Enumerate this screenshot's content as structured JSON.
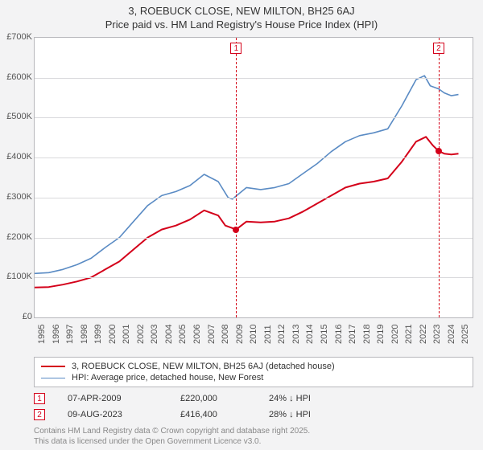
{
  "title_line1": "3, ROEBUCK CLOSE, NEW MILTON, BH25 6AJ",
  "title_line2": "Price paid vs. HM Land Registry's House Price Index (HPI)",
  "chart": {
    "background_color": "#ffffff",
    "page_background": "#f3f3f4",
    "grid_color": "#d9d9dc",
    "border_color": "#b8b8bc",
    "x_min": 1995,
    "x_max": 2026,
    "y_min": 0,
    "y_max": 700000,
    "y_ticks": [
      0,
      100000,
      200000,
      300000,
      400000,
      500000,
      600000,
      700000
    ],
    "y_tick_labels": [
      "£0",
      "£100K",
      "£200K",
      "£300K",
      "£400K",
      "£500K",
      "£600K",
      "£700K"
    ],
    "x_ticks": [
      1995,
      1996,
      1997,
      1998,
      1999,
      2000,
      2001,
      2002,
      2003,
      2004,
      2005,
      2006,
      2007,
      2008,
      2009,
      2010,
      2011,
      2012,
      2013,
      2014,
      2015,
      2016,
      2017,
      2018,
      2019,
      2020,
      2021,
      2022,
      2023,
      2024,
      2025
    ],
    "label_fontsize": 11,
    "title_fontsize": 13
  },
  "series": [
    {
      "name": "3, ROEBUCK CLOSE, NEW MILTON, BH25 6AJ (detached house)",
      "color": "#d4001a",
      "line_width": 2,
      "data": [
        [
          1995,
          75000
        ],
        [
          1996,
          76000
        ],
        [
          1997,
          82000
        ],
        [
          1998,
          90000
        ],
        [
          1999,
          100000
        ],
        [
          2000,
          120000
        ],
        [
          2001,
          140000
        ],
        [
          2002,
          170000
        ],
        [
          2003,
          200000
        ],
        [
          2004,
          220000
        ],
        [
          2005,
          230000
        ],
        [
          2006,
          245000
        ],
        [
          2007,
          268000
        ],
        [
          2008,
          255000
        ],
        [
          2008.5,
          230000
        ],
        [
          2009.27,
          220000
        ],
        [
          2010,
          240000
        ],
        [
          2011,
          238000
        ],
        [
          2012,
          240000
        ],
        [
          2013,
          248000
        ],
        [
          2014,
          265000
        ],
        [
          2015,
          285000
        ],
        [
          2016,
          305000
        ],
        [
          2017,
          325000
        ],
        [
          2018,
          335000
        ],
        [
          2019,
          340000
        ],
        [
          2020,
          348000
        ],
        [
          2021,
          390000
        ],
        [
          2022,
          440000
        ],
        [
          2022.7,
          452000
        ],
        [
          2023.2,
          430000
        ],
        [
          2023.6,
          416400
        ],
        [
          2024,
          410000
        ],
        [
          2024.5,
          408000
        ],
        [
          2025,
          410000
        ]
      ]
    },
    {
      "name": "HPI: Average price, detached house, New Forest",
      "color": "#5a8bc4",
      "line_width": 1.6,
      "data": [
        [
          1995,
          110000
        ],
        [
          1996,
          112000
        ],
        [
          1997,
          120000
        ],
        [
          1998,
          132000
        ],
        [
          1999,
          148000
        ],
        [
          2000,
          175000
        ],
        [
          2001,
          200000
        ],
        [
          2002,
          240000
        ],
        [
          2003,
          280000
        ],
        [
          2004,
          305000
        ],
        [
          2005,
          315000
        ],
        [
          2006,
          330000
        ],
        [
          2007,
          358000
        ],
        [
          2008,
          340000
        ],
        [
          2008.7,
          300000
        ],
        [
          2009,
          296000
        ],
        [
          2010,
          325000
        ],
        [
          2011,
          320000
        ],
        [
          2012,
          325000
        ],
        [
          2013,
          335000
        ],
        [
          2014,
          360000
        ],
        [
          2015,
          385000
        ],
        [
          2016,
          415000
        ],
        [
          2017,
          440000
        ],
        [
          2018,
          455000
        ],
        [
          2019,
          462000
        ],
        [
          2020,
          472000
        ],
        [
          2021,
          530000
        ],
        [
          2022,
          595000
        ],
        [
          2022.6,
          605000
        ],
        [
          2023,
          580000
        ],
        [
          2023.6,
          572000
        ],
        [
          2024,
          562000
        ],
        [
          2024.5,
          555000
        ],
        [
          2025,
          558000
        ]
      ]
    }
  ],
  "markers": [
    {
      "n": "1",
      "x": 2009.27,
      "y": 220000,
      "color": "#d4001a"
    },
    {
      "n": "2",
      "x": 2023.6,
      "y": 416400,
      "color": "#d4001a"
    }
  ],
  "legend": {
    "items": [
      {
        "color": "#d4001a",
        "width": 2,
        "label": "3, ROEBUCK CLOSE, NEW MILTON, BH25 6AJ (detached house)"
      },
      {
        "color": "#5a8bc4",
        "width": 1.6,
        "label": "HPI: Average price, detached house, New Forest"
      }
    ]
  },
  "sales": [
    {
      "n": "1",
      "color": "#d4001a",
      "date": "07-APR-2009",
      "price": "£220,000",
      "diff": "24% ↓ HPI"
    },
    {
      "n": "2",
      "color": "#d4001a",
      "date": "09-AUG-2023",
      "price": "£416,400",
      "diff": "28% ↓ HPI"
    }
  ],
  "footer_line1": "Contains HM Land Registry data © Crown copyright and database right 2025.",
  "footer_line2": "This data is licensed under the Open Government Licence v3.0."
}
